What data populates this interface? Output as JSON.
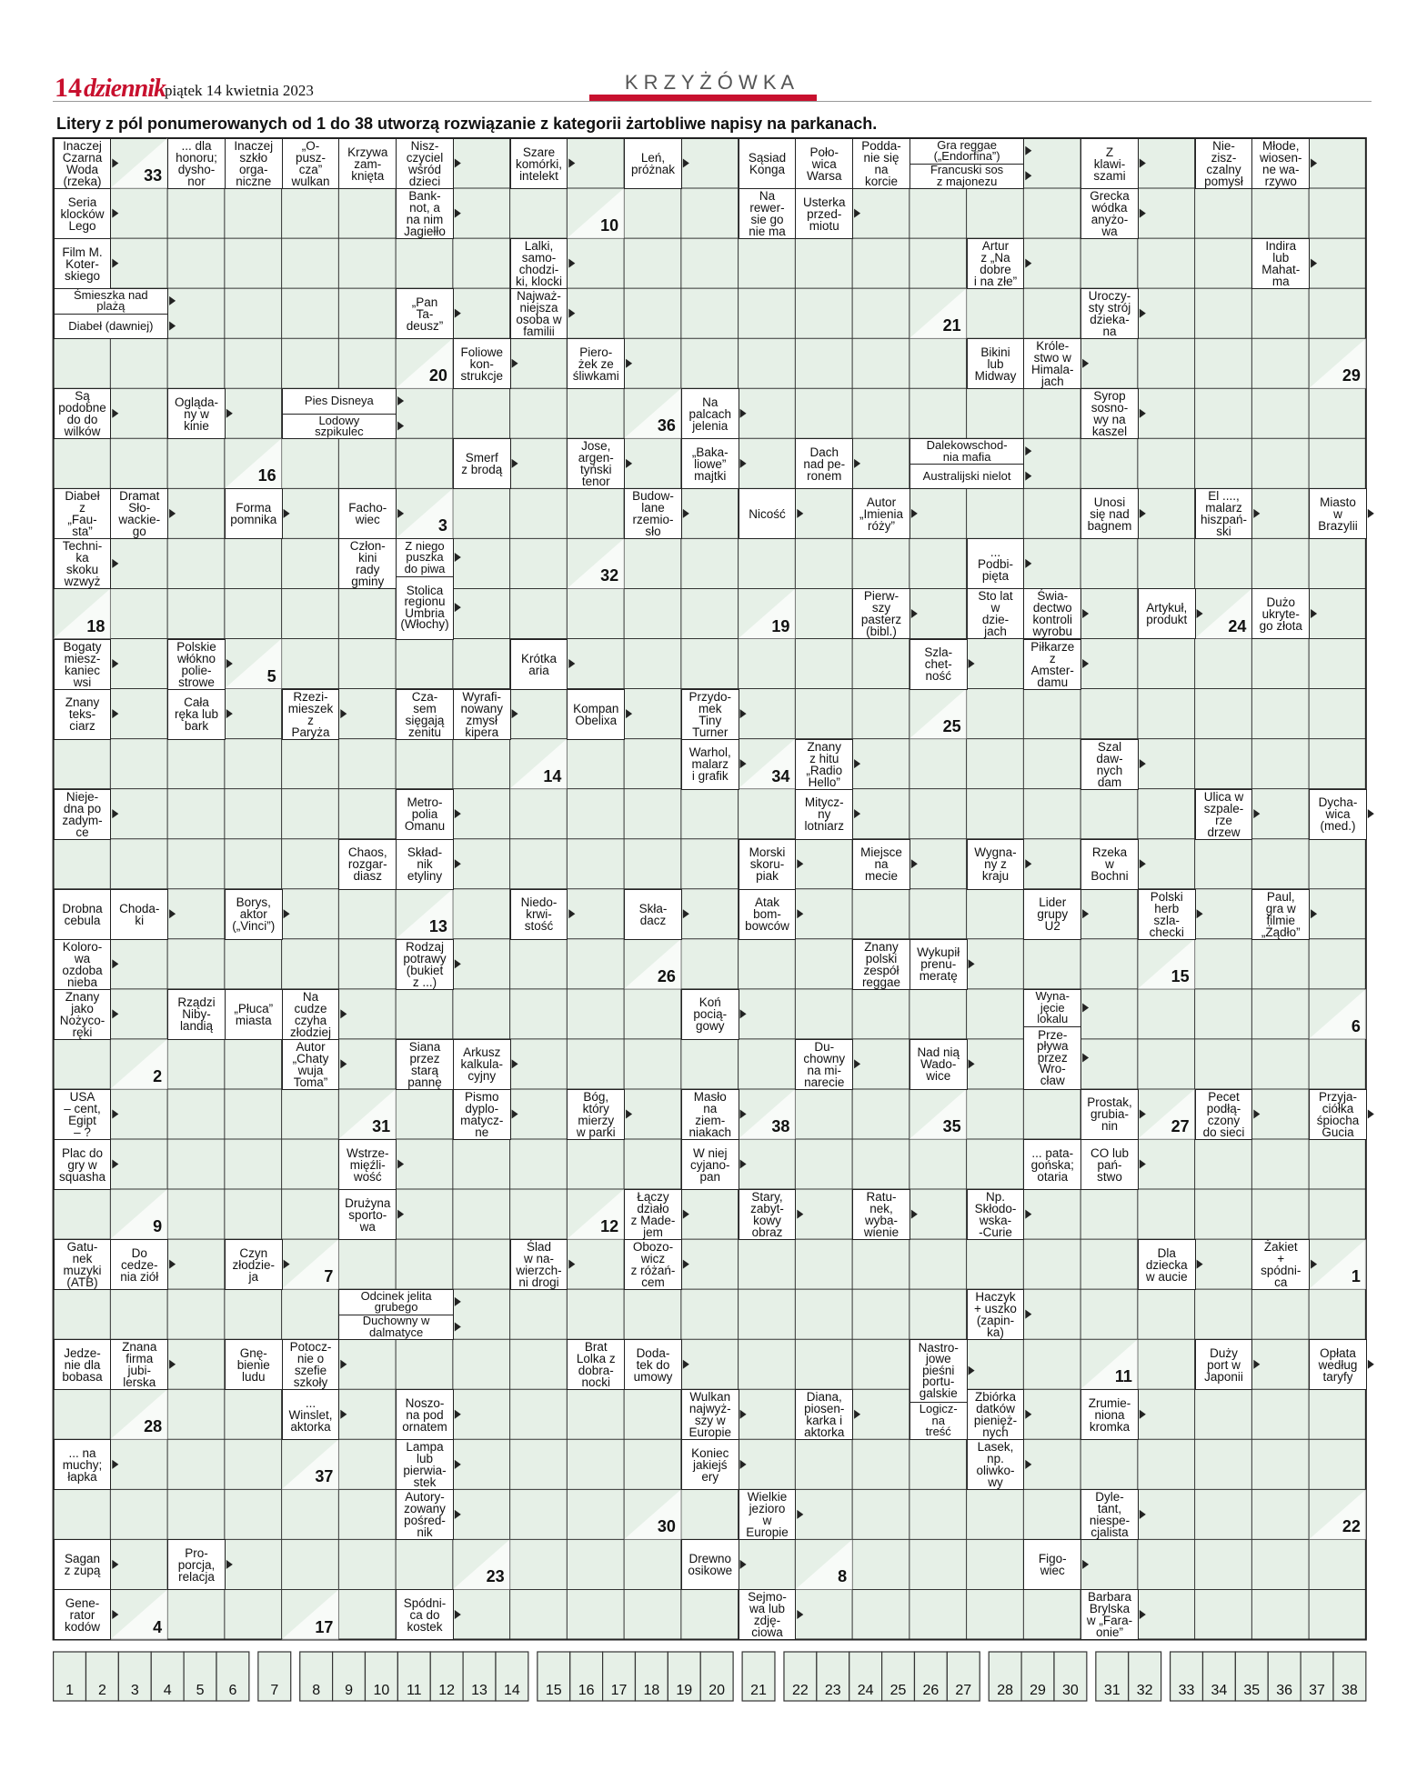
{
  "header": {
    "page_number": "14",
    "logo": "dziennik",
    "date": "piątek 14 kwietnia 2023",
    "section": "K R Z Y Ż Ó W K A"
  },
  "instruction": "Litery z pól ponumerowanych od 1 do 38 utworzą rozwiązanie z kategorii żartobliwe napisy na parkanach.",
  "clues": [
    "Inaczej\nCzarna\nWoda\n(rzeka)",
    "... dla\nhonoru;\ndysho-\nnor",
    "Inaczej\nszkło\norga-\nniczne",
    "„O-\npusz-\ncza”\nwulkan",
    "Krzywa\nzam-\nknięta",
    "Nisz-\nczyciel\nwśród\ndzieci",
    "Szare\nkomórki,\nintelekt",
    "Leń,\npróżnak",
    "Sąsiad\nKonga",
    "Poło-\nwica\nWarsa",
    "Podda-\nnie się\nna\nkorcie",
    "Gra reggae\n(„Endorfina”)",
    "Francuski sos\nz majonezu",
    "Z\nklawi-\nszami",
    "Nie-\nzisz-\nczalny\npomysł",
    "Młode,\nwiosen-\nne wa-\nrzywo",
    "Seria\nklocków\nLego",
    "Bank-\nnot, a\nna nim\nJagiełło",
    "Na\nrewer-\nsie go\nnie ma",
    "Usterka\nprzed-\nmiotu",
    "Grecka\nwódka\nanyżo-\nwa",
    "Film M.\nKoter-\nskiego",
    "Lalki,\nsamo-\nchodzi-\nki, klocki",
    "Artur\nz „Na\ndobre\ni na złe”",
    "Indira\nlub\nMahat-\nma",
    "Śmieszka nad\nplażą",
    "Diabeł (dawniej)",
    "„Pan\nTa-\ndeusz”",
    "Najważ-\nniejsza\nosoba w\nfamilii",
    "Uroczy-\nsty strój\ndzieka-\nna",
    "Foliowe\nkon-\nstrukcje",
    "Piero-\nżek ze\nśliwkami",
    "Bikini\nlub\nMidway",
    "Króle-\nstwo w\nHimala-\njach",
    "Są\npodobne\ndo do\nwilków",
    "Ogląda-\nny w\nkinie",
    "Pies Disneya",
    "Lodowy\nszpikulec",
    "Na\npalcach\njelenia",
    "Syrop\nsosno-\nwy na\nkaszel",
    "Smerf\nz brodą",
    "Jose,\nargen-\ntyński\ntenor",
    "„Baka-\nliowe”\nmajtki",
    "Dach\nnad pe-\nronem",
    "Dalekowschod-\nnia mafia",
    "Australijski nielot",
    "Diabeł\nz\n„Fau-\nsta”",
    "Dramat\nSło-\nwackie-\ngo",
    "Forma\npomnika",
    "Facho-\nwiec",
    "Budow-\nlane\nrzemio-\nsło",
    "Nicość",
    "Autor\n„Imienia\nróży”",
    "Unosi\nsię nad\nbagnem",
    "El ....,\nmalarz\nhiszpań-\nski",
    "Miasto\nw\nBrazylii",
    "Techni-\nka\nskoku\nwzwyż",
    "Człon-\nkini\nrady\ngminy",
    "Z niego\npuszka\ndo piwa",
    "Stolica\nregionu\nUmbria\n(Włochy)",
    "...\nPodbi-\npięta",
    "Pierw-\nszy\npasterz\n(bibl.)",
    "Sto lat\nw\ndzie-\njach",
    "Świa-\ndectwo\nkontroli\nwyrobu",
    "Artykuł,\nprodukt",
    "Dużo\nukryte-\ngo złota",
    "Bogaty\nmiesz-\nkaniec\nwsi",
    "Polskie\nwłókno\npolie-\nstrowe",
    "Krótka\naria",
    "Szla-\nchet-\nność",
    "Piłkarze\nz\nAmster-\ndamu",
    "Znany\nteks-\nciarz",
    "Cała\nręka lub\nbark",
    "Rzezi-\nmieszek\nz\nParyża",
    "Cza-\nsem\nsięgają\nzenitu",
    "Wyrafi-\nnowany\nzmysł\nkipera",
    "Kompan\nObelixa",
    "Przydo-\nmek\nTiny\nTurner",
    "Warhol,\nmalarz\ni grafik",
    "Znany\nz hitu\n„Radio\nHello”",
    "Szal\ndaw-\nnych\ndam",
    "Nieje-\ndna po\nzadym-\nce",
    "Metro-\npolia\nOmanu",
    "Mitycz-\nny\nlotniarz",
    "Ulica w\nszpale-\nrze\ndrzew",
    "Dycha-\nwica\n(med.)",
    "Chaos,\nrozgar-\ndiasz",
    "Skład-\nnik\netyliny",
    "Morski\nskoru-\npiak",
    "Miejsce\nna\nmecie",
    "Wygna-\nny z\nkraju",
    "Rzeka\nw\nBochni",
    "Drobna\ncebula",
    "Choda-\nki",
    "Borys,\naktor\n(„Vinci”)",
    "Niedo-\nkrwi-\nstość",
    "Skła-\ndacz",
    "Atak\nbom-\nbowców",
    "Lider\ngrupy\nU2",
    "Polski\nherb\nszla-\nchecki",
    "Paul,\ngra w\nfilmie\n„Żądło”",
    "Koloro-\nwa\nozdoba\nnieba",
    "Rodzaj\npotrawy\n(bukiet\nz ...)",
    "Znany\npolski\nzespół\nreggae",
    "Wykupił\nprenu-\nmeratę",
    "Znany\njako\nNożyco-\nręki",
    "Rządzi\nNiby-\nlandią",
    "„Płuca”\nmiasta",
    "Na\ncudze\nczyha\nzłodziej",
    "Koń\npocią-\ngowy",
    "Wyna-\njęcie\nlokalu",
    "Prze-\npływa\nprzez\nWro-\ncław",
    "Autor\n„Chaty\nwuja\nToma”",
    "Siana\nprzez\nstarą\npannę",
    "Arkusz\nkalkula-\ncyjny",
    "Du-\nchowny\nna mi-\nnarecie",
    "Nad nią\nWado-\nwice",
    "USA\n– cent,\nEgipt\n– ?",
    "Pismo\ndyplo-\nmatycz-\nne",
    "Bóg,\nktóry\nmierzy\nw parki",
    "Masło\nna\nziem-\nniakach",
    "Prostak,\ngrubia-\nnin",
    "Pecet\npodłą-\nczony\ndo sieci",
    "Przyja-\nciółka\nśpiocha\nGucia",
    "Plac do\ngry w\nsquasha",
    "Wstrze-\nmięźli-\nwość",
    "W niej\ncyjano-\npan",
    "... pata-\ngońska;\notaria",
    "CO lub\npań-\nstwo",
    "Drużyna\nsporto-\nwa",
    "Łączy\ndziało\nz Made-\njem",
    "Stary,\nzabyt-\nkowy\nobraz",
    "Ratu-\nnek,\nwyba-\nwienie",
    "Np.\nSkłodo-\nwska-\n-Curie",
    "Gatu-\nnek\nmuzyki\n(ATB)",
    "Do\ncedze-\nnia ziół",
    "Czyn\nzłodzie-\nja",
    "Ślad\nw na-\nwierzch-\nni drogi",
    "Obozo-\nwicz\nz różań-\ncem",
    "Dla\ndziecka\nw aucie",
    "Żakiet\n+\nspódni-\nca",
    "Odcinek jelita\ngrubego",
    "Duchowny w\ndalmatyce",
    "Haczyk\n+ uszko\n(zapin-\nka)",
    "Jedze-\nnie dla\nbobasa",
    "Znana\nfirma\njubi-\nlerska",
    "Gnę-\nbienie\nludu",
    "Potocz-\nnie o\nszefie\nszkoły",
    "Brat\nLolka z\ndobra-\nnocki",
    "Doda-\ntek do\numowy",
    "Nastro-\njowe\npieśni\nportu-\ngalskie",
    "Logicz-\nna\ntreść",
    "Duży\nport w\nJaponii",
    "Opłata\nwedług\ntaryfy",
    "...\nWinslet,\naktorka",
    "Noszo-\nna pod\nornatem",
    "Wulkan\nnajwyż-\nszy w\nEuropie",
    "Diana,\npiosen-\nkarka i\naktorka",
    "Zbiórka\ndatków\npienięż-\nnych",
    "Zrumie-\nniona\nkromka",
    "... na\nmuchy;\nłapka",
    "Lampa\nlub\npierwia-\nstek",
    "Koniec\njakiejś\nery",
    "Lasek,\nnp.\noliwko-\nwy",
    "Autory-\nzowany\npośred-\nnik",
    "Wielkie\njezioro\nw\nEuropie",
    "Dyle-\ntant,\nniespe-\ncjalista",
    "Sagan\nz zupą",
    "Pro-\nporcja,\nrelacja",
    "Drewno\nosikowe",
    "Figo-\nwiec",
    "Gene-\nrator\nkodów",
    "Spódni-\nca do\nkostek",
    "Sejmo-\nwa lub\nzdję-\nciowa",
    "Barbara\nBrylska\nw „Fara-\nonie”"
  ],
  "cell_numbers": [
    33,
    10,
    21,
    20,
    29,
    36,
    16,
    3,
    32,
    18,
    19,
    24,
    5,
    25,
    14,
    34,
    13,
    26,
    15,
    6,
    2,
    31,
    38,
    35,
    27,
    12,
    9,
    7,
    1,
    11,
    28,
    37,
    30,
    22,
    23,
    8,
    4,
    17
  ],
  "solution_numbers": [
    [
      1,
      2,
      3,
      4,
      5,
      6
    ],
    [
      7
    ],
    [
      8,
      9,
      10,
      11,
      12,
      13,
      14
    ],
    [
      15,
      16,
      17,
      18,
      19,
      20
    ],
    [
      21
    ],
    [
      22,
      23,
      24,
      25,
      26,
      27
    ],
    [
      28,
      29,
      30
    ],
    [
      31,
      32
    ],
    [
      33,
      34,
      35,
      36,
      37,
      38
    ]
  ]
}
